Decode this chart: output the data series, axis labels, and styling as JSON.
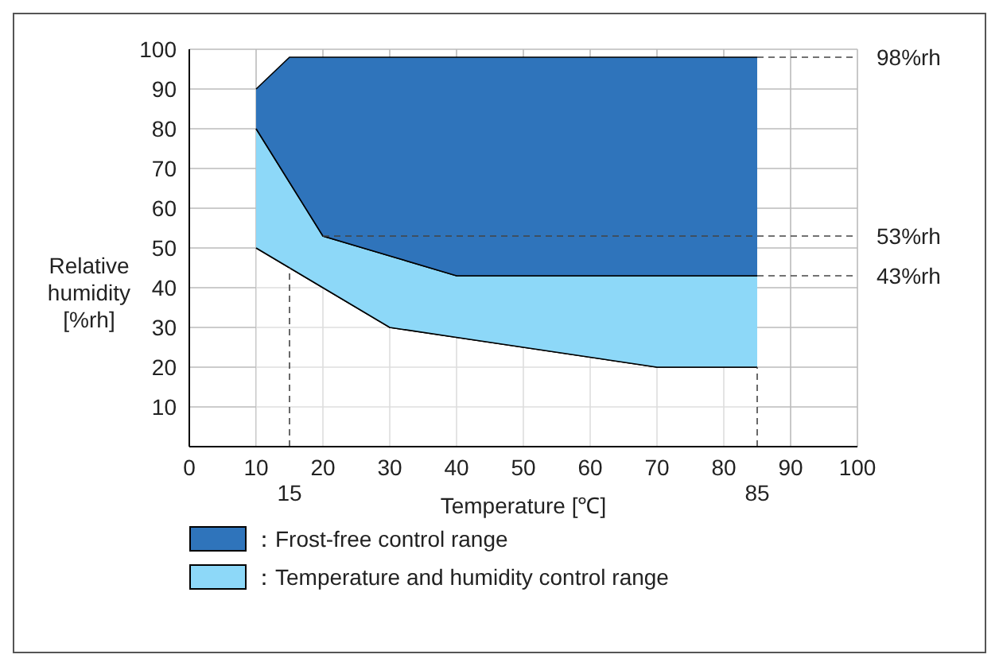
{
  "chart_data": {
    "type": "area",
    "xlabel": "Temperature [℃]",
    "ylabel": "Relative humidity [%rh]",
    "x": [
      10,
      15,
      20,
      30,
      40,
      70,
      85
    ],
    "series": [
      {
        "type": "area",
        "color": "#ffffff",
        "values": [
          50,
          45,
          40,
          30,
          27.5,
          20,
          20
        ]
      },
      {
        "name": "：Temperature and humidity control range",
        "color": "#8dd8f8",
        "values": [
          30,
          21.5,
          13,
          18,
          15.5,
          23,
          23
        ]
      },
      {
        "name": "：Frost-free control range",
        "color": "#2f74bb",
        "values": [
          10,
          31.5,
          45,
          50,
          55,
          55,
          55
        ]
      }
    ],
    "stacked": true,
    "xlim": [
      0,
      100
    ],
    "xticks": [
      0,
      10,
      20,
      30,
      40,
      50,
      60,
      70,
      80,
      90,
      100
    ],
    "ylim": [
      0,
      100
    ],
    "yticks": [
      10,
      20,
      30,
      40,
      50,
      60,
      70,
      80,
      90,
      100
    ],
    "ref_lines": [
      {
        "axis": "x",
        "value": 15,
        "label": "15",
        "line_style": "dashed"
      },
      {
        "axis": "x",
        "value": 85,
        "label": "85",
        "line_style": "dashed"
      },
      {
        "axis": "y",
        "value": 98,
        "label": "98%rh",
        "line_style": "dashed"
      },
      {
        "axis": "y",
        "value": 53,
        "label": "53%rh",
        "line_style": "dashed"
      },
      {
        "axis": "y",
        "value": 43,
        "label": "43%rh",
        "line_style": "dashed"
      }
    ],
    "grid": true,
    "legend": "bottom"
  }
}
